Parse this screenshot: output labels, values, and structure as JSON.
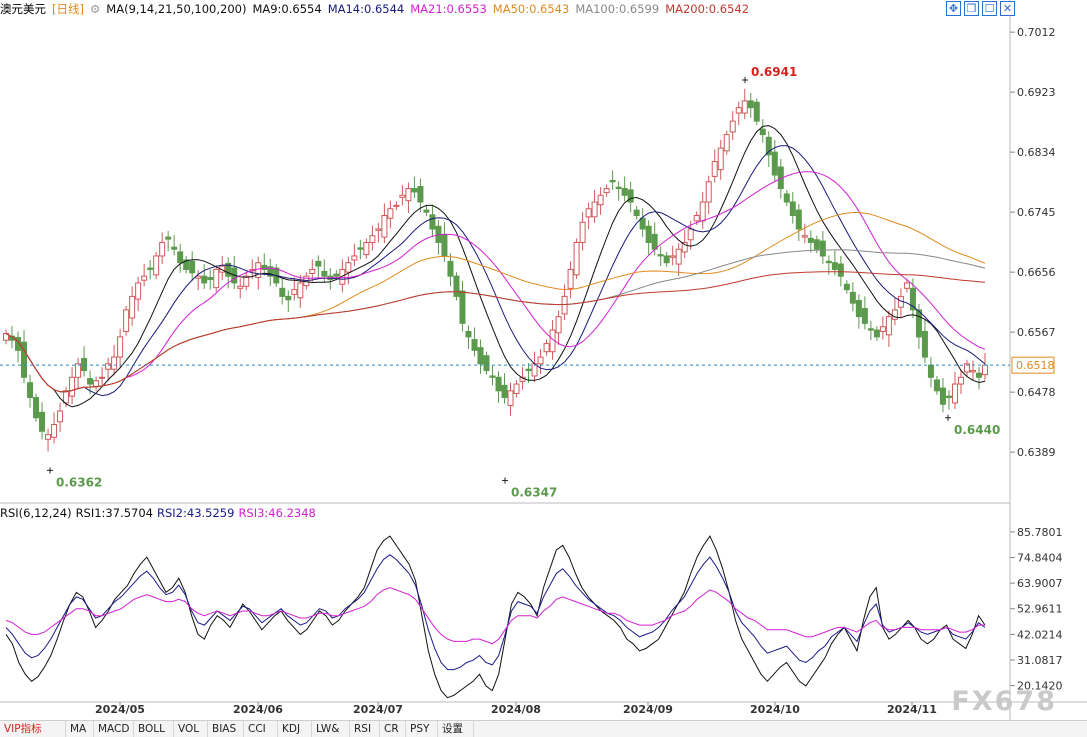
{
  "header": {
    "symbol": "澳元美元",
    "period": "[日线]",
    "ma_params": "MA(9,14,21,50,100,200)",
    "ma9": "MA9:0.6554",
    "ma14": "MA14:0.6544",
    "ma21": "MA21:0.6553",
    "ma50": "MA50:0.6543",
    "ma100": "MA100:0.6599",
    "ma200": "MA200:0.6542"
  },
  "rsi_header": {
    "params": "RSI(6,12,24)",
    "rsi1": "RSI1:37.5704",
    "rsi2": "RSI2:43.5259",
    "rsi3": "RSI3:46.2348"
  },
  "colors": {
    "up": "#d05a5a",
    "down": "#5b9a4c",
    "ma9": "#111111",
    "ma14": "#1a1a7a",
    "ma21": "#d21fd2",
    "ma50": "#e08a1e",
    "ma100": "#888888",
    "ma200": "#c0392b",
    "rsi1": "#111111",
    "rsi2": "#1a1a8a",
    "rsi3": "#d21fd2"
  },
  "toolbar": {
    "tabs": [
      "VIP指标",
      "MA",
      "MACD",
      "BOLL",
      "VOL",
      "BIAS",
      "CCI",
      "KDJ",
      "LW&",
      "RSI",
      "CR",
      "PSY",
      "设置"
    ],
    "active": "VIP指标"
  },
  "watermark": "FX678",
  "chart_data": [
    {
      "type": "candlestick",
      "title": "澳元美元 [日线]",
      "y_axis_ticks": [
        0.7012,
        0.6923,
        0.6834,
        0.6745,
        0.6656,
        0.6567,
        0.6478,
        0.6389
      ],
      "x_axis_labels": [
        "2024/05",
        "2024/06",
        "2024/07",
        "2024/08",
        "2024/09",
        "2024/10",
        "2024/11"
      ],
      "ylim": [
        0.6318,
        0.703
      ],
      "current_price": 0.6518,
      "annotations": [
        {
          "label": "0.6941",
          "type": "high",
          "value": 0.6941
        },
        {
          "label": "0.6440",
          "type": "low",
          "value": 0.644
        },
        {
          "label": "0.6362",
          "type": "low",
          "value": 0.6362
        },
        {
          "label": "0.6347",
          "type": "low",
          "value": 0.6347
        }
      ],
      "series_close": [
        0.6565,
        0.6555,
        0.654,
        0.65,
        0.647,
        0.644,
        0.642,
        0.6415,
        0.643,
        0.645,
        0.648,
        0.65,
        0.652,
        0.651,
        0.649,
        0.6495,
        0.65,
        0.652,
        0.653,
        0.656,
        0.66,
        0.662,
        0.664,
        0.665,
        0.666,
        0.668,
        0.67,
        0.6705,
        0.669,
        0.667,
        0.666,
        0.6655,
        0.665,
        0.664,
        0.6645,
        0.666,
        0.6665,
        0.665,
        0.664,
        0.6635,
        0.665,
        0.666,
        0.667,
        0.666,
        0.665,
        0.664,
        0.662,
        0.6615,
        0.663,
        0.664,
        0.665,
        0.666,
        0.6665,
        0.665,
        0.6645,
        0.665,
        0.666,
        0.667,
        0.668,
        0.669,
        0.67,
        0.671,
        0.672,
        0.674,
        0.675,
        0.6755,
        0.677,
        0.678,
        0.6775,
        0.676,
        0.6745,
        0.672,
        0.67,
        0.668,
        0.665,
        0.662,
        0.658,
        0.656,
        0.654,
        0.652,
        0.651,
        0.65,
        0.648,
        0.647,
        0.648,
        0.649,
        0.65,
        0.651,
        0.652,
        0.653,
        0.655,
        0.657,
        0.659,
        0.662,
        0.666,
        0.67,
        0.673,
        0.675,
        0.676,
        0.677,
        0.678,
        0.679,
        0.678,
        0.677,
        0.676,
        0.674,
        0.672,
        0.67,
        0.669,
        0.668,
        0.667,
        0.668,
        0.669,
        0.67,
        0.672,
        0.674,
        0.676,
        0.679,
        0.682,
        0.684,
        0.686,
        0.688,
        0.69,
        0.691,
        0.69,
        0.688,
        0.686,
        0.683,
        0.68,
        0.678,
        0.676,
        0.674,
        0.672,
        0.671,
        0.67,
        0.669,
        0.668,
        0.667,
        0.666,
        0.665,
        0.663,
        0.661,
        0.659,
        0.658,
        0.657,
        0.656,
        0.6575,
        0.659,
        0.66,
        0.662,
        0.664,
        0.66,
        0.656,
        0.653,
        0.65,
        0.648,
        0.646,
        0.647,
        0.649,
        0.65,
        0.652,
        0.651,
        0.65,
        0.6518
      ]
    },
    {
      "type": "line",
      "title": "RSI(6,12,24)",
      "y_axis_ticks": [
        85.7801,
        74.8404,
        63.9007,
        52.9611,
        42.0214,
        31.0817,
        20.142
      ],
      "ylim": [
        14.0,
        90.0
      ],
      "series": [
        {
          "name": "RSI1",
          "values": [
            42,
            38,
            30,
            25,
            22,
            24,
            28,
            33,
            40,
            48,
            55,
            60,
            58,
            52,
            45,
            48,
            52,
            57,
            60,
            63,
            68,
            72,
            75,
            70,
            65,
            60,
            62,
            66,
            60,
            50,
            42,
            40,
            46,
            50,
            48,
            45,
            50,
            55,
            52,
            48,
            44,
            47,
            50,
            52,
            48,
            45,
            42,
            44,
            48,
            52,
            50,
            46,
            48,
            52,
            55,
            58,
            62,
            70,
            78,
            82,
            84,
            80,
            76,
            72,
            65,
            50,
            35,
            25,
            18,
            15,
            16,
            18,
            20,
            22,
            25,
            20,
            18,
            25,
            40,
            55,
            60,
            58,
            55,
            50,
            62,
            70,
            78,
            80,
            75,
            68,
            62,
            58,
            55,
            52,
            50,
            48,
            45,
            40,
            38,
            35,
            36,
            38,
            40,
            45,
            50,
            55,
            60,
            68,
            75,
            80,
            84,
            78,
            70,
            60,
            48,
            40,
            35,
            30,
            25,
            22,
            25,
            28,
            30,
            26,
            22,
            20,
            24,
            28,
            32,
            38,
            42,
            45,
            40,
            35,
            48,
            58,
            62,
            45,
            40,
            42,
            45,
            48,
            45,
            40,
            38,
            40,
            44,
            46,
            40,
            38,
            36,
            42,
            50,
            46
          ]
        },
        {
          "name": "RSI2",
          "values": [
            45,
            42,
            38,
            34,
            32,
            33,
            36,
            40,
            45,
            50,
            55,
            58,
            57,
            53,
            49,
            50,
            53,
            56,
            58,
            61,
            64,
            67,
            69,
            66,
            62,
            59,
            60,
            63,
            59,
            52,
            47,
            46,
            49,
            52,
            50,
            48,
            51,
            54,
            53,
            50,
            47,
            49,
            51,
            53,
            50,
            48,
            46,
            47,
            50,
            53,
            52,
            49,
            50,
            53,
            55,
            57,
            60,
            65,
            70,
            74,
            76,
            74,
            71,
            68,
            63,
            54,
            44,
            36,
            30,
            27,
            27,
            28,
            30,
            31,
            33,
            30,
            29,
            33,
            42,
            52,
            56,
            55,
            54,
            51,
            58,
            63,
            68,
            70,
            67,
            63,
            60,
            57,
            55,
            53,
            51,
            50,
            48,
            45,
            43,
            41,
            42,
            43,
            45,
            48,
            52,
            55,
            58,
            63,
            68,
            72,
            75,
            71,
            66,
            60,
            52,
            47,
            44,
            41,
            37,
            34,
            35,
            36,
            37,
            34,
            31,
            30,
            32,
            35,
            37,
            41,
            43,
            45,
            42,
            39,
            46,
            52,
            55,
            46,
            43,
            44,
            45,
            47,
            45,
            43,
            42,
            43,
            44,
            45,
            42,
            41,
            40,
            43,
            47,
            45
          ]
        },
        {
          "name": "RSI3",
          "values": [
            48,
            47,
            45,
            43,
            42,
            42,
            43,
            45,
            47,
            49,
            51,
            53,
            53,
            52,
            50,
            50,
            51,
            52,
            53,
            55,
            57,
            58,
            59,
            58,
            57,
            56,
            56,
            57,
            56,
            53,
            51,
            50,
            51,
            52,
            51,
            50,
            51,
            52,
            52,
            51,
            50,
            50,
            51,
            52,
            51,
            50,
            49,
            49,
            50,
            51,
            51,
            50,
            50,
            51,
            52,
            53,
            54,
            56,
            59,
            61,
            62,
            61,
            60,
            59,
            57,
            53,
            49,
            45,
            42,
            40,
            39,
            39,
            39,
            40,
            40,
            39,
            38,
            40,
            44,
            48,
            50,
            50,
            50,
            49,
            52,
            54,
            57,
            58,
            57,
            56,
            55,
            54,
            53,
            52,
            51,
            51,
            50,
            48,
            47,
            46,
            46,
            46,
            47,
            48,
            50,
            51,
            52,
            54,
            57,
            59,
            61,
            60,
            58,
            56,
            53,
            51,
            49,
            48,
            46,
            44,
            44,
            44,
            44,
            43,
            42,
            41,
            41,
            42,
            43,
            44,
            45,
            45,
            44,
            43,
            45,
            47,
            48,
            45,
            44,
            44,
            45,
            45,
            45,
            44,
            44,
            44,
            44,
            45,
            44,
            43,
            43,
            44,
            46,
            46
          ]
        }
      ]
    }
  ]
}
